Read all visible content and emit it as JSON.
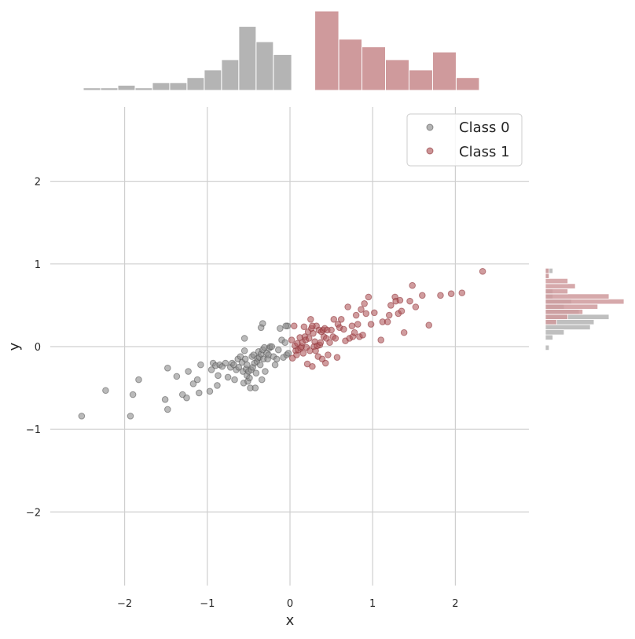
{
  "chart_data": {
    "type": "scatter",
    "title": "",
    "xlabel": "x",
    "ylabel": "y",
    "xlim": [
      -2.9,
      2.9
    ],
    "ylim": [
      -2.9,
      2.9
    ],
    "x_ticks": [
      -2,
      -1,
      0,
      1,
      2
    ],
    "y_ticks": [
      -2,
      -1,
      0,
      1,
      2
    ],
    "tick_labels": {
      "neg2": "−2",
      "neg1": "−1",
      "zero": "0",
      "pos1": "1",
      "pos2": "2"
    },
    "grid": true,
    "legend_position": "top-right",
    "series": [
      {
        "name": "Class 0",
        "color": "#8c8c8c",
        "hist_color": "#b4b4b4",
        "points": [
          [
            -2.52,
            -0.84
          ],
          [
            -2.23,
            -0.53
          ],
          [
            -1.93,
            -0.84
          ],
          [
            -1.9,
            -0.58
          ],
          [
            -1.83,
            -0.4
          ],
          [
            -1.51,
            -0.64
          ],
          [
            -1.48,
            -0.76
          ],
          [
            -1.48,
            -0.26
          ],
          [
            -1.37,
            -0.36
          ],
          [
            -1.3,
            -0.58
          ],
          [
            -1.25,
            -0.62
          ],
          [
            -1.23,
            -0.3
          ],
          [
            -1.17,
            -0.45
          ],
          [
            -1.12,
            -0.4
          ],
          [
            -1.1,
            -0.56
          ],
          [
            -1.08,
            -0.22
          ],
          [
            -0.97,
            -0.54
          ],
          [
            -0.95,
            -0.28
          ],
          [
            -0.93,
            -0.2
          ],
          [
            -0.9,
            -0.23
          ],
          [
            -0.88,
            -0.47
          ],
          [
            -0.87,
            -0.35
          ],
          [
            -0.85,
            -0.22
          ],
          [
            -0.82,
            -0.24
          ],
          [
            -0.78,
            -0.2
          ],
          [
            -0.75,
            -0.37
          ],
          [
            -0.72,
            -0.25
          ],
          [
            -0.7,
            -0.2
          ],
          [
            -0.68,
            -0.22
          ],
          [
            -0.67,
            -0.4
          ],
          [
            -0.65,
            -0.28
          ],
          [
            -0.63,
            -0.15
          ],
          [
            -0.62,
            -0.25
          ],
          [
            -0.6,
            -0.12
          ],
          [
            -0.58,
            -0.19
          ],
          [
            -0.57,
            -0.3
          ],
          [
            -0.56,
            -0.44
          ],
          [
            -0.55,
            -0.05
          ],
          [
            -0.54,
            -0.15
          ],
          [
            -0.53,
            -0.27
          ],
          [
            -0.52,
            -0.22
          ],
          [
            -0.52,
            -0.35
          ],
          [
            -0.51,
            -0.42
          ],
          [
            -0.5,
            -0.3
          ],
          [
            -0.49,
            -0.38
          ],
          [
            -0.48,
            -0.5
          ],
          [
            -0.47,
            -0.28
          ],
          [
            -0.46,
            -0.12
          ],
          [
            -0.45,
            -0.25
          ],
          [
            -0.44,
            -0.1
          ],
          [
            -0.43,
            -0.2
          ],
          [
            -0.42,
            -0.5
          ],
          [
            -0.41,
            -0.32
          ],
          [
            -0.4,
            -0.18
          ],
          [
            -0.39,
            -0.14
          ],
          [
            -0.38,
            -0.06
          ],
          [
            -0.37,
            -0.13
          ],
          [
            -0.36,
            -0.22
          ],
          [
            -0.35,
            -0.09
          ],
          [
            -0.34,
            -0.4
          ],
          [
            -0.33,
            -0.04
          ],
          [
            -0.32,
            -0.15
          ],
          [
            -0.31,
            -0.01
          ],
          [
            -0.3,
            -0.3
          ],
          [
            -0.28,
            -0.08
          ],
          [
            -0.27,
            -0.15
          ],
          [
            -0.26,
            -0.1
          ],
          [
            -0.25,
            -0.02
          ],
          [
            -0.24,
            0.0
          ],
          [
            -0.22,
            0.0
          ],
          [
            -0.2,
            -0.12
          ],
          [
            -0.18,
            -0.22
          ],
          [
            -0.16,
            -0.15
          ],
          [
            -0.14,
            -0.04
          ],
          [
            -0.12,
            0.22
          ],
          [
            -0.1,
            0.08
          ],
          [
            -0.08,
            -0.13
          ],
          [
            -0.06,
            0.05
          ],
          [
            -0.04,
            -0.1
          ],
          [
            -0.03,
            0.25
          ],
          [
            -0.02,
            -0.08
          ],
          [
            -0.33,
            0.28
          ],
          [
            -0.35,
            0.23
          ],
          [
            -0.55,
            0.1
          ],
          [
            -0.05,
            0.25
          ]
        ],
        "top_hist_counts": [
          1,
          1,
          2,
          1,
          3,
          3,
          5,
          8,
          12,
          25,
          19,
          14
        ],
        "right_hist_counts": [
          0,
          0,
          0,
          0,
          0,
          0,
          0,
          0,
          0,
          0,
          0,
          0,
          0,
          1,
          0,
          2,
          5,
          12,
          13,
          17,
          9,
          5,
          7,
          2,
          2,
          0,
          0,
          1,
          2
        ]
      },
      {
        "name": "Class 1",
        "color": "#b05a5e",
        "hist_color": "#cf9a9c",
        "points": [
          [
            0.03,
            -0.14
          ],
          [
            0.05,
            0.25
          ],
          [
            0.06,
            0.01
          ],
          [
            0.07,
            -0.05
          ],
          [
            0.08,
            -0.1
          ],
          [
            0.09,
            0.04
          ],
          [
            0.1,
            -0.04
          ],
          [
            0.12,
            0.11
          ],
          [
            0.13,
            -0.02
          ],
          [
            0.14,
            0.0
          ],
          [
            0.15,
            0.05
          ],
          [
            0.16,
            -0.08
          ],
          [
            0.17,
            0.24
          ],
          [
            0.18,
            0.12
          ],
          [
            0.19,
            0.08
          ],
          [
            0.2,
            -0.01
          ],
          [
            0.21,
            -0.21
          ],
          [
            0.22,
            0.18
          ],
          [
            0.23,
            0.1
          ],
          [
            0.24,
            -0.05
          ],
          [
            0.25,
            0.33
          ],
          [
            0.26,
            0.22
          ],
          [
            0.27,
            -0.24
          ],
          [
            0.28,
            0.16
          ],
          [
            0.29,
            0.0
          ],
          [
            0.3,
            0.06
          ],
          [
            0.31,
            -0.05
          ],
          [
            0.32,
            0.25
          ],
          [
            0.33,
            0.01
          ],
          [
            0.34,
            -0.12
          ],
          [
            0.35,
            0.2
          ],
          [
            0.36,
            0.02
          ],
          [
            0.37,
            0.05
          ],
          [
            0.38,
            0.18
          ],
          [
            0.39,
            -0.15
          ],
          [
            0.4,
            0.2
          ],
          [
            0.41,
            0.12
          ],
          [
            0.42,
            0.22
          ],
          [
            0.43,
            -0.2
          ],
          [
            0.44,
            0.1
          ],
          [
            0.45,
            0.2
          ],
          [
            0.46,
            -0.1
          ],
          [
            0.48,
            0.05
          ],
          [
            0.5,
            0.2
          ],
          [
            0.52,
            0.12
          ],
          [
            0.53,
            0.33
          ],
          [
            0.55,
            0.1
          ],
          [
            0.57,
            -0.13
          ],
          [
            0.58,
            0.27
          ],
          [
            0.6,
            0.23
          ],
          [
            0.62,
            0.33
          ],
          [
            0.65,
            0.21
          ],
          [
            0.67,
            0.07
          ],
          [
            0.7,
            0.48
          ],
          [
            0.72,
            0.1
          ],
          [
            0.75,
            0.25
          ],
          [
            0.76,
            0.12
          ],
          [
            0.78,
            0.17
          ],
          [
            0.8,
            0.38
          ],
          [
            0.82,
            0.27
          ],
          [
            0.84,
            0.12
          ],
          [
            0.86,
            0.45
          ],
          [
            0.88,
            0.14
          ],
          [
            0.9,
            0.52
          ],
          [
            0.92,
            0.4
          ],
          [
            0.95,
            0.6
          ],
          [
            0.98,
            0.27
          ],
          [
            1.02,
            0.41
          ],
          [
            1.1,
            0.08
          ],
          [
            1.12,
            0.3
          ],
          [
            1.18,
            0.3
          ],
          [
            1.2,
            0.38
          ],
          [
            1.22,
            0.5
          ],
          [
            1.27,
            0.6
          ],
          [
            1.28,
            0.55
          ],
          [
            1.31,
            0.4
          ],
          [
            1.33,
            0.56
          ],
          [
            1.35,
            0.43
          ],
          [
            1.38,
            0.17
          ],
          [
            1.45,
            0.55
          ],
          [
            1.48,
            0.74
          ],
          [
            1.52,
            0.48
          ],
          [
            1.6,
            0.62
          ],
          [
            1.68,
            0.26
          ],
          [
            1.82,
            0.62
          ],
          [
            1.95,
            0.64
          ],
          [
            2.08,
            0.65
          ],
          [
            2.33,
            0.91
          ],
          [
            0.02,
            0.08
          ],
          [
            0.27,
            0.25
          ]
        ],
        "top_hist_counts": [
          31,
          20,
          17,
          12,
          8,
          15,
          5,
          2,
          2
        ],
        "right_hist_counts": [
          0,
          0,
          0,
          0,
          0,
          0,
          0,
          0,
          0,
          0,
          0,
          0,
          0,
          0,
          0,
          0,
          0,
          0,
          3,
          6,
          10,
          14,
          21,
          17,
          6,
          8,
          6,
          1,
          1
        ]
      }
    ],
    "top_hist_edges": [
      -2.5,
      -2.291,
      -2.082,
      -1.873,
      -1.664,
      -1.455,
      -1.246,
      -1.037,
      -0.828,
      -0.619,
      -0.41,
      -0.201,
      0.02,
      0.3,
      0.59,
      0.87,
      1.155,
      1.44,
      1.725,
      2.01,
      2.29
    ],
    "right_hist_edges": [
      -0.85,
      -0.788,
      -0.726,
      -0.664,
      -0.602,
      -0.54,
      -0.478,
      -0.416,
      -0.354,
      -0.292,
      -0.23,
      -0.168,
      -0.106,
      -0.044,
      0.018,
      0.08,
      0.142,
      0.204,
      0.266,
      0.328,
      0.39,
      0.452,
      0.514,
      0.576,
      0.638,
      0.7,
      0.762,
      0.824,
      0.886,
      0.948
    ]
  }
}
